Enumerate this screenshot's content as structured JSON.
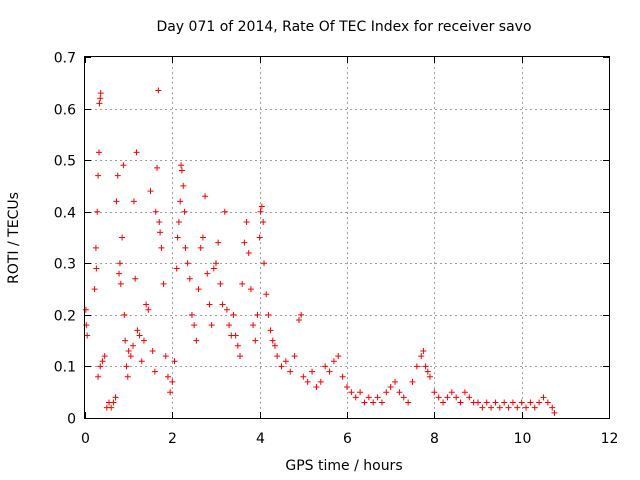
{
  "chart_data": {
    "type": "scatter",
    "title": "Day 071 of 2014, Rate Of TEC Index for receiver savo",
    "xlabel": "GPS time / hours",
    "ylabel": "ROTI / TECUs",
    "xlim": [
      0,
      12
    ],
    "ylim": [
      0,
      0.7
    ],
    "xticks": [
      0,
      2,
      4,
      6,
      8,
      10,
      12
    ],
    "yticks": [
      0,
      0.1,
      0.2,
      0.3,
      0.4,
      0.5,
      0.6,
      0.7
    ],
    "grid": true,
    "marker": "+",
    "color": "#ff0000",
    "series": [
      {
        "name": "ROTI",
        "points": [
          [
            0.02,
            0.21
          ],
          [
            0.03,
            0.18
          ],
          [
            0.05,
            0.16
          ],
          [
            0.25,
            0.33
          ],
          [
            0.28,
            0.4
          ],
          [
            0.3,
            0.47
          ],
          [
            0.32,
            0.515
          ],
          [
            0.33,
            0.61
          ],
          [
            0.35,
            0.62
          ],
          [
            0.36,
            0.63
          ],
          [
            0.22,
            0.25
          ],
          [
            0.26,
            0.29
          ],
          [
            0.3,
            0.08
          ],
          [
            0.35,
            0.1
          ],
          [
            0.4,
            0.11
          ],
          [
            0.45,
            0.12
          ],
          [
            0.5,
            0.02
          ],
          [
            0.55,
            0.03
          ],
          [
            0.6,
            0.02
          ],
          [
            0.65,
            0.03
          ],
          [
            0.7,
            0.04
          ],
          [
            0.72,
            0.42
          ],
          [
            0.75,
            0.47
          ],
          [
            0.78,
            0.28
          ],
          [
            0.8,
            0.3
          ],
          [
            0.82,
            0.26
          ],
          [
            0.85,
            0.35
          ],
          [
            0.88,
            0.49
          ],
          [
            0.9,
            0.2
          ],
          [
            0.92,
            0.15
          ],
          [
            0.95,
            0.1
          ],
          [
            0.98,
            0.08
          ],
          [
            1.0,
            0.13
          ],
          [
            1.05,
            0.12
          ],
          [
            1.1,
            0.14
          ],
          [
            1.12,
            0.42
          ],
          [
            1.15,
            0.27
          ],
          [
            1.18,
            0.515
          ],
          [
            1.2,
            0.17
          ],
          [
            1.25,
            0.16
          ],
          [
            1.3,
            0.11
          ],
          [
            1.35,
            0.15
          ],
          [
            1.4,
            0.22
          ],
          [
            1.45,
            0.21
          ],
          [
            1.5,
            0.44
          ],
          [
            1.55,
            0.13
          ],
          [
            1.6,
            0.09
          ],
          [
            1.62,
            0.4
          ],
          [
            1.65,
            0.485
          ],
          [
            1.68,
            0.635
          ],
          [
            1.7,
            0.38
          ],
          [
            1.72,
            0.36
          ],
          [
            1.75,
            0.33
          ],
          [
            1.8,
            0.26
          ],
          [
            1.85,
            0.12
          ],
          [
            1.9,
            0.08
          ],
          [
            1.95,
            0.05
          ],
          [
            2.0,
            0.07
          ],
          [
            2.05,
            0.11
          ],
          [
            2.1,
            0.29
          ],
          [
            2.12,
            0.35
          ],
          [
            2.15,
            0.38
          ],
          [
            2.18,
            0.42
          ],
          [
            2.2,
            0.49
          ],
          [
            2.22,
            0.48
          ],
          [
            2.25,
            0.45
          ],
          [
            2.28,
            0.4
          ],
          [
            2.3,
            0.33
          ],
          [
            2.35,
            0.3
          ],
          [
            2.4,
            0.27
          ],
          [
            2.45,
            0.2
          ],
          [
            2.5,
            0.18
          ],
          [
            2.55,
            0.15
          ],
          [
            2.6,
            0.25
          ],
          [
            2.65,
            0.33
          ],
          [
            2.7,
            0.35
          ],
          [
            2.75,
            0.43
          ],
          [
            2.8,
            0.28
          ],
          [
            2.85,
            0.22
          ],
          [
            2.9,
            0.18
          ],
          [
            2.95,
            0.29
          ],
          [
            3.0,
            0.3
          ],
          [
            3.05,
            0.34
          ],
          [
            3.1,
            0.26
          ],
          [
            3.15,
            0.22
          ],
          [
            3.2,
            0.4
          ],
          [
            3.25,
            0.21
          ],
          [
            3.3,
            0.18
          ],
          [
            3.35,
            0.16
          ],
          [
            3.4,
            0.2
          ],
          [
            3.45,
            0.16
          ],
          [
            3.5,
            0.14
          ],
          [
            3.55,
            0.12
          ],
          [
            3.6,
            0.26
          ],
          [
            3.65,
            0.34
          ],
          [
            3.7,
            0.38
          ],
          [
            3.75,
            0.32
          ],
          [
            3.8,
            0.25
          ],
          [
            3.85,
            0.18
          ],
          [
            3.9,
            0.15
          ],
          [
            3.95,
            0.2
          ],
          [
            4.0,
            0.35
          ],
          [
            4.02,
            0.4
          ],
          [
            4.05,
            0.41
          ],
          [
            4.08,
            0.38
          ],
          [
            4.1,
            0.3
          ],
          [
            4.15,
            0.24
          ],
          [
            4.2,
            0.2
          ],
          [
            4.25,
            0.17
          ],
          [
            4.3,
            0.15
          ],
          [
            4.35,
            0.14
          ],
          [
            4.4,
            0.12
          ],
          [
            4.5,
            0.1
          ],
          [
            4.6,
            0.11
          ],
          [
            4.7,
            0.09
          ],
          [
            4.8,
            0.12
          ],
          [
            4.9,
            0.19
          ],
          [
            4.95,
            0.2
          ],
          [
            5.0,
            0.08
          ],
          [
            5.1,
            0.07
          ],
          [
            5.2,
            0.09
          ],
          [
            5.3,
            0.06
          ],
          [
            5.4,
            0.07
          ],
          [
            5.5,
            0.1
          ],
          [
            5.6,
            0.09
          ],
          [
            5.7,
            0.11
          ],
          [
            5.8,
            0.12
          ],
          [
            5.9,
            0.08
          ],
          [
            6.0,
            0.06
          ],
          [
            6.1,
            0.05
          ],
          [
            6.2,
            0.04
          ],
          [
            6.3,
            0.05
          ],
          [
            6.4,
            0.03
          ],
          [
            6.5,
            0.04
          ],
          [
            6.6,
            0.03
          ],
          [
            6.7,
            0.04
          ],
          [
            6.8,
            0.03
          ],
          [
            6.9,
            0.05
          ],
          [
            7.0,
            0.06
          ],
          [
            7.1,
            0.07
          ],
          [
            7.2,
            0.05
          ],
          [
            7.3,
            0.04
          ],
          [
            7.4,
            0.03
          ],
          [
            7.5,
            0.07
          ],
          [
            7.6,
            0.1
          ],
          [
            7.7,
            0.12
          ],
          [
            7.75,
            0.13
          ],
          [
            7.8,
            0.1
          ],
          [
            7.85,
            0.09
          ],
          [
            7.9,
            0.08
          ],
          [
            8.0,
            0.05
          ],
          [
            8.1,
            0.04
          ],
          [
            8.2,
            0.03
          ],
          [
            8.3,
            0.04
          ],
          [
            8.4,
            0.05
          ],
          [
            8.5,
            0.04
          ],
          [
            8.6,
            0.03
          ],
          [
            8.7,
            0.05
          ],
          [
            8.8,
            0.04
          ],
          [
            8.9,
            0.03
          ],
          [
            9.0,
            0.03
          ],
          [
            9.1,
            0.02
          ],
          [
            9.2,
            0.03
          ],
          [
            9.3,
            0.02
          ],
          [
            9.4,
            0.03
          ],
          [
            9.5,
            0.02
          ],
          [
            9.6,
            0.03
          ],
          [
            9.7,
            0.02
          ],
          [
            9.8,
            0.03
          ],
          [
            9.9,
            0.02
          ],
          [
            10.0,
            0.03
          ],
          [
            10.1,
            0.02
          ],
          [
            10.2,
            0.03
          ],
          [
            10.3,
            0.02
          ],
          [
            10.4,
            0.03
          ],
          [
            10.5,
            0.04
          ],
          [
            10.6,
            0.03
          ],
          [
            10.7,
            0.02
          ],
          [
            10.75,
            0.01
          ]
        ]
      }
    ]
  }
}
